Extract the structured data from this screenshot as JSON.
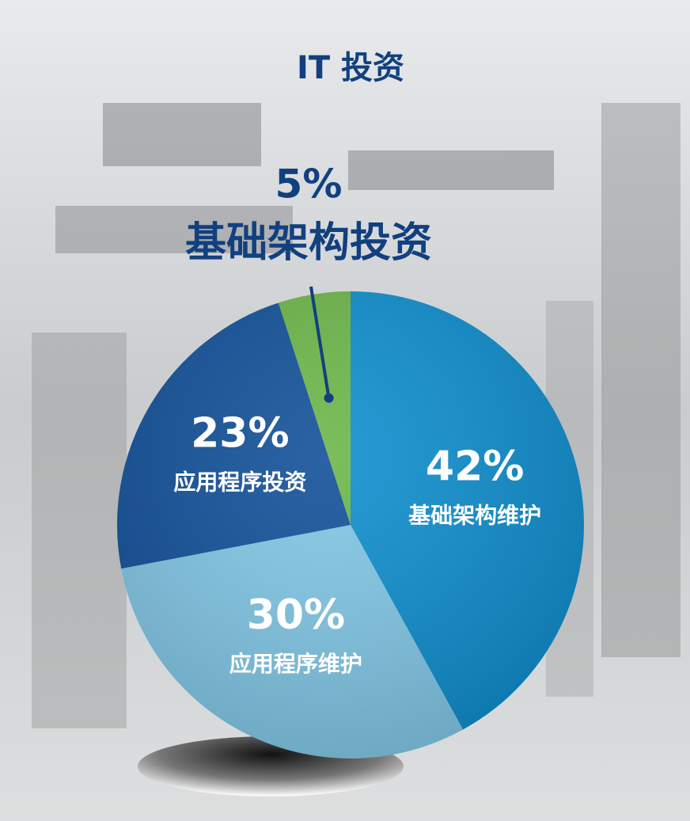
{
  "chart_data": {
    "type": "pie",
    "title": "IT 投资",
    "categories": [
      "基础架构维护",
      "应用程序维护",
      "应用程序投资",
      "基础架构投资"
    ],
    "values": [
      42,
      30,
      23,
      5
    ],
    "value_labels": [
      "42%",
      "30%",
      "23%",
      "5%"
    ],
    "colors": [
      "#0a8ccd",
      "#7fc6e5",
      "#0d4d97",
      "#6ab545"
    ]
  }
}
